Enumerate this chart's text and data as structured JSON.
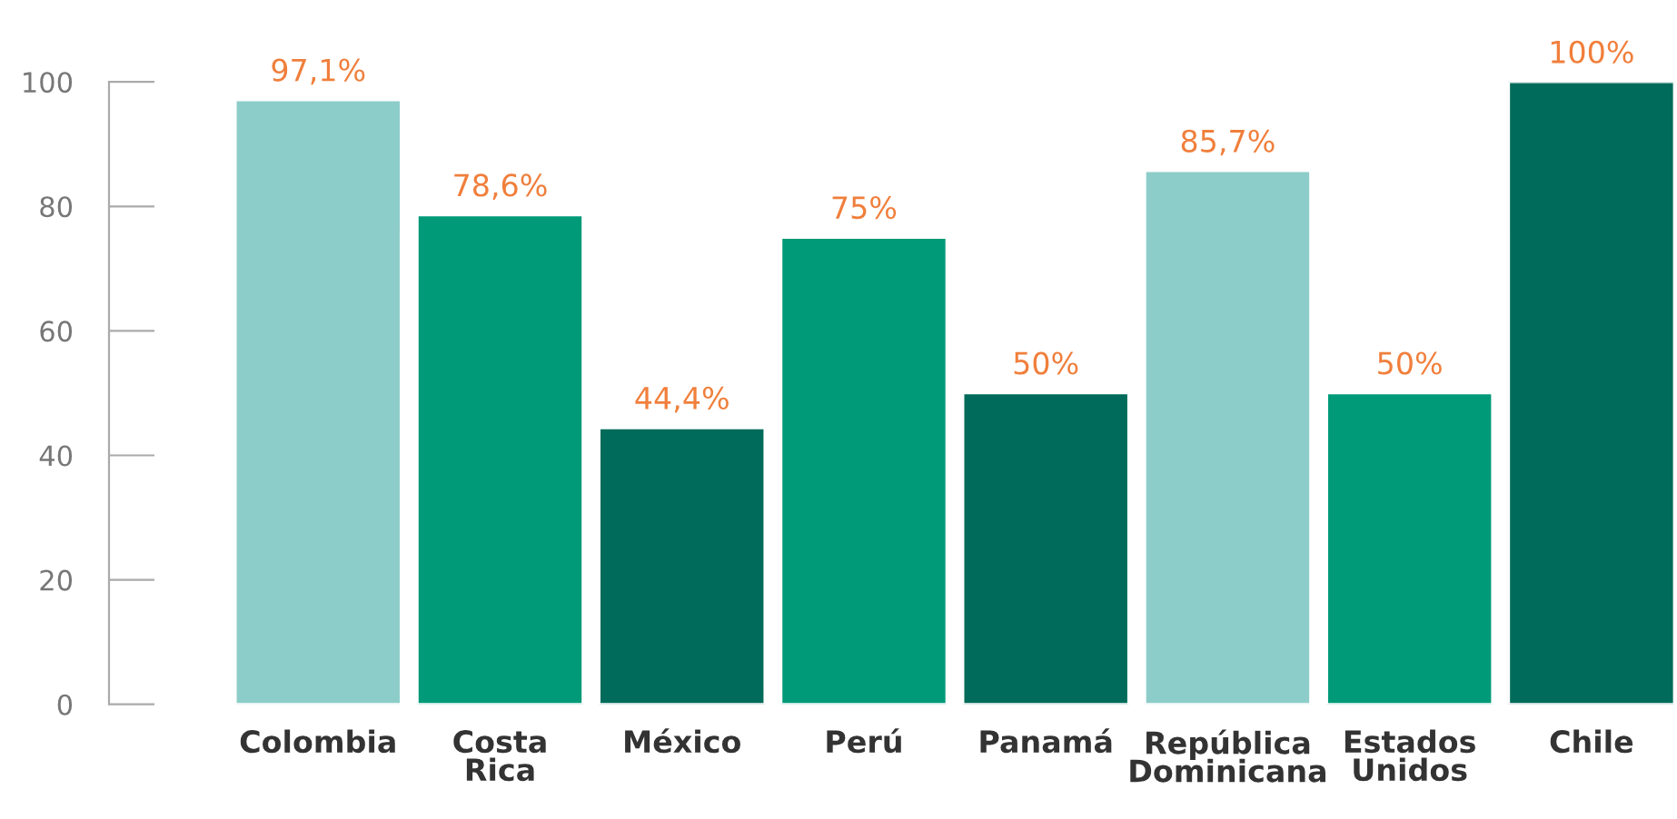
{
  "chart_data": {
    "type": "bar",
    "categories": [
      "Colombia",
      "Costa\nRica",
      "México",
      "Perú",
      "Panamá",
      "República\nDominicana",
      "Estados\nUnidos",
      "Chile"
    ],
    "values": [
      97.1,
      78.6,
      44.4,
      75,
      50,
      85.7,
      50,
      100
    ],
    "colors": [
      "#8dcdc9",
      "#009a78",
      "#006b5a",
      "#009a78",
      "#006b5a",
      "#8dcdc9",
      "#009a78",
      "#006b5a"
    ],
    "value_labels": [
      "97,1%",
      "78,6%",
      "44,4%",
      "75%",
      "50%",
      "85,7%",
      "50%",
      "100%"
    ],
    "ylim": [
      0,
      100
    ],
    "yticks": [
      0,
      20,
      40,
      60,
      80,
      100
    ],
    "grid": false,
    "legend": false
  }
}
